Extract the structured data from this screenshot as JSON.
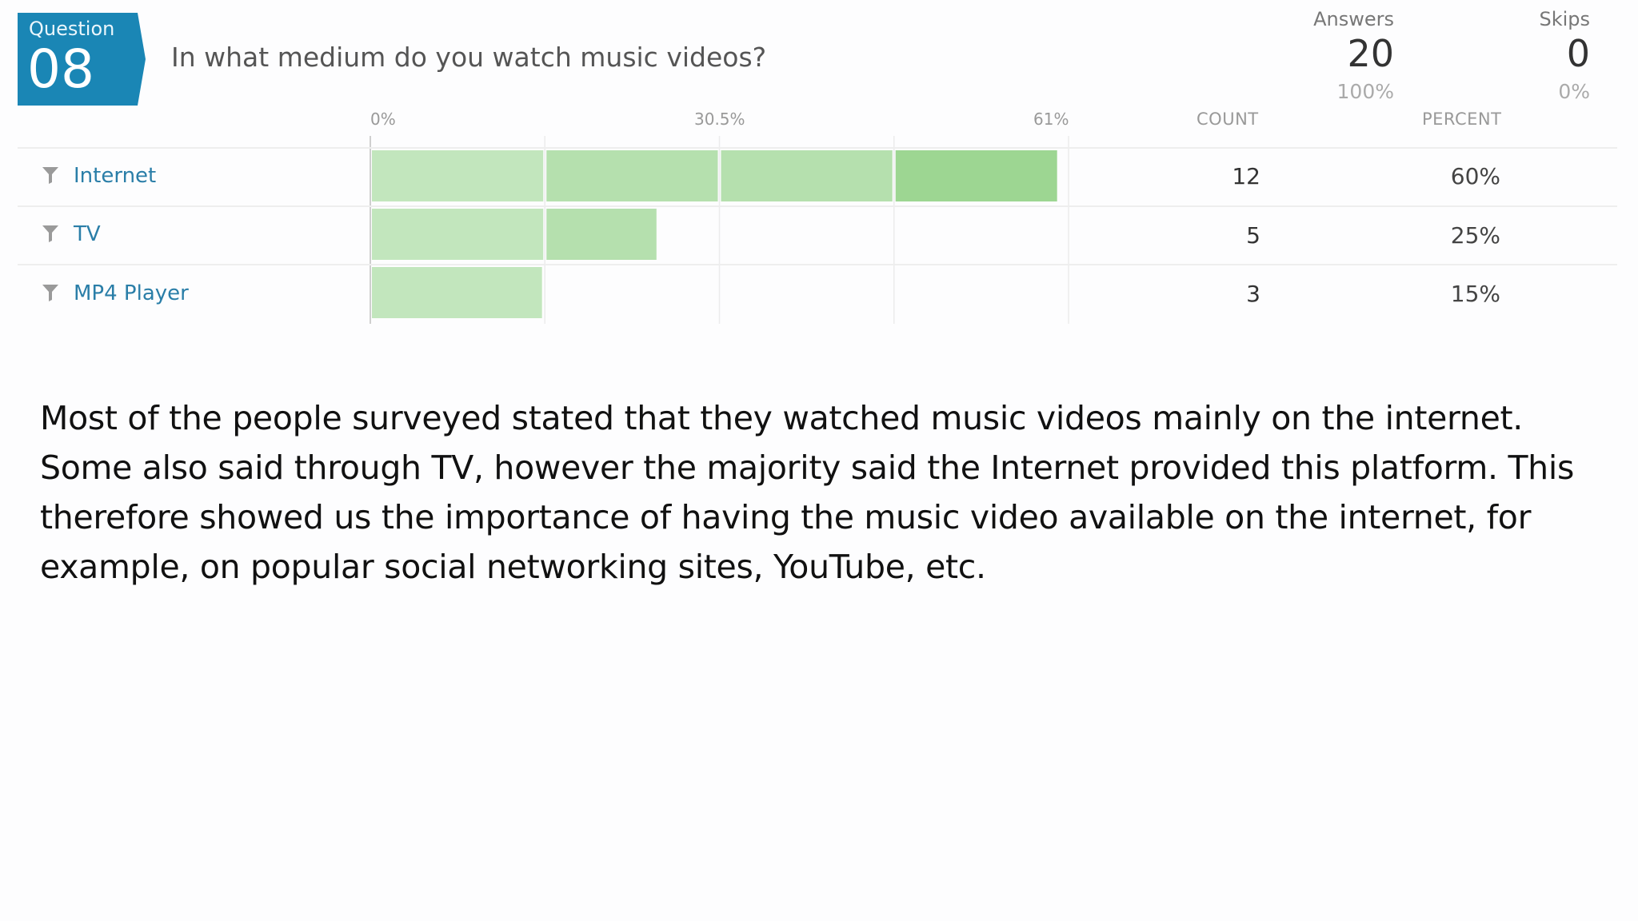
{
  "question": {
    "label": "Question",
    "number": "08",
    "text": "In what medium do you watch music videos?"
  },
  "stats": {
    "answers_label": "Answers",
    "answers_value": "20",
    "answers_pct": "100%",
    "skips_label": "Skips",
    "skips_value": "0",
    "skips_pct": "0%"
  },
  "columns": {
    "count": "COUNT",
    "percent": "PERCENT"
  },
  "colors": {
    "bar_light": "#c2e6bd",
    "bar_mid": "#b5e0ae",
    "bar_dark": "#9dd692",
    "accent": "#1a86b5",
    "link": "#2a7ea8"
  },
  "chart_data": {
    "type": "bar",
    "orientation": "horizontal",
    "categories": [
      "Internet",
      "TV",
      "MP4 Player"
    ],
    "values": [
      60,
      25,
      15
    ],
    "counts": [
      "12",
      "5",
      "3"
    ],
    "percents": [
      "60%",
      "25%",
      "15%"
    ],
    "xlim": [
      0,
      61
    ],
    "ticks": [
      "0%",
      "30.5%",
      "61%"
    ],
    "grid": true
  },
  "rows": [
    {
      "label": "Internet",
      "count": "12",
      "percent": "60%"
    },
    {
      "label": "TV",
      "count": "5",
      "percent": "25%"
    },
    {
      "label": "MP4 Player",
      "count": "3",
      "percent": "15%"
    }
  ],
  "summary": {
    "text": "Most of the people surveyed stated that they watched music videos mainly on the internet. Some also said through TV, however the majority said the Internet provided this platform. This therefore showed us the importance of having the music video available on the internet, for example, on popular social networking sites, YouTube, etc."
  }
}
